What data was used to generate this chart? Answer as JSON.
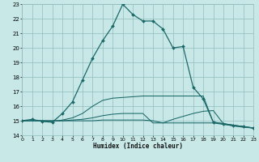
{
  "xlabel": "Humidex (Indice chaleur)",
  "background_color": "#c8e8e8",
  "grid_color": "#90bcbc",
  "line_color": "#1a6868",
  "xlim": [
    0,
    23
  ],
  "ylim": [
    14,
    23
  ],
  "xticks": [
    0,
    1,
    2,
    3,
    4,
    5,
    6,
    7,
    8,
    9,
    10,
    11,
    12,
    13,
    14,
    15,
    16,
    17,
    18,
    19,
    20,
    21,
    22,
    23
  ],
  "yticks": [
    14,
    15,
    16,
    17,
    18,
    19,
    20,
    21,
    22,
    23
  ],
  "curve_main_x": [
    0,
    1,
    2,
    3,
    4,
    5,
    6,
    7,
    8,
    9,
    10,
    11,
    12,
    13,
    14,
    15,
    16,
    17,
    18,
    19,
    20,
    21,
    22,
    23
  ],
  "curve_main_y": [
    15.0,
    15.1,
    14.95,
    14.9,
    15.5,
    16.3,
    17.8,
    19.3,
    20.5,
    21.5,
    23.0,
    22.3,
    21.85,
    21.85,
    21.3,
    20.0,
    20.1,
    17.3,
    16.5,
    14.9,
    14.8,
    14.65,
    14.6,
    14.5
  ],
  "curve2_x": [
    0,
    1,
    2,
    3,
    4,
    5,
    6,
    7,
    8,
    9,
    10,
    11,
    12,
    13,
    14,
    15,
    16,
    17,
    18,
    19,
    20,
    21,
    22,
    23
  ],
  "curve2_y": [
    15.0,
    15.0,
    15.0,
    14.95,
    15.05,
    15.2,
    15.5,
    16.0,
    16.4,
    16.55,
    16.6,
    16.65,
    16.7,
    16.7,
    16.7,
    16.7,
    16.7,
    16.7,
    16.7,
    14.9,
    14.8,
    14.7,
    14.6,
    14.5
  ],
  "curve3_x": [
    0,
    1,
    2,
    3,
    4,
    5,
    6,
    7,
    8,
    9,
    10,
    11,
    12,
    13,
    14,
    15,
    16,
    17,
    18,
    19,
    20,
    21,
    22,
    23
  ],
  "curve3_y": [
    15.0,
    15.0,
    15.0,
    15.0,
    15.0,
    15.05,
    15.1,
    15.2,
    15.35,
    15.45,
    15.5,
    15.5,
    15.5,
    14.85,
    14.85,
    15.1,
    15.3,
    15.5,
    15.65,
    15.7,
    14.8,
    14.7,
    14.6,
    14.5
  ],
  "curve4_x": [
    0,
    1,
    2,
    3,
    4,
    5,
    6,
    7,
    8,
    9,
    10,
    11,
    12,
    13,
    14,
    15,
    16,
    17,
    18,
    19,
    20,
    21,
    22,
    23
  ],
  "curve4_y": [
    15.0,
    15.0,
    15.0,
    15.0,
    15.0,
    15.0,
    15.0,
    15.0,
    15.05,
    15.05,
    15.05,
    15.05,
    15.05,
    15.0,
    14.85,
    14.85,
    14.85,
    14.85,
    14.85,
    14.85,
    14.75,
    14.65,
    14.55,
    14.5
  ]
}
